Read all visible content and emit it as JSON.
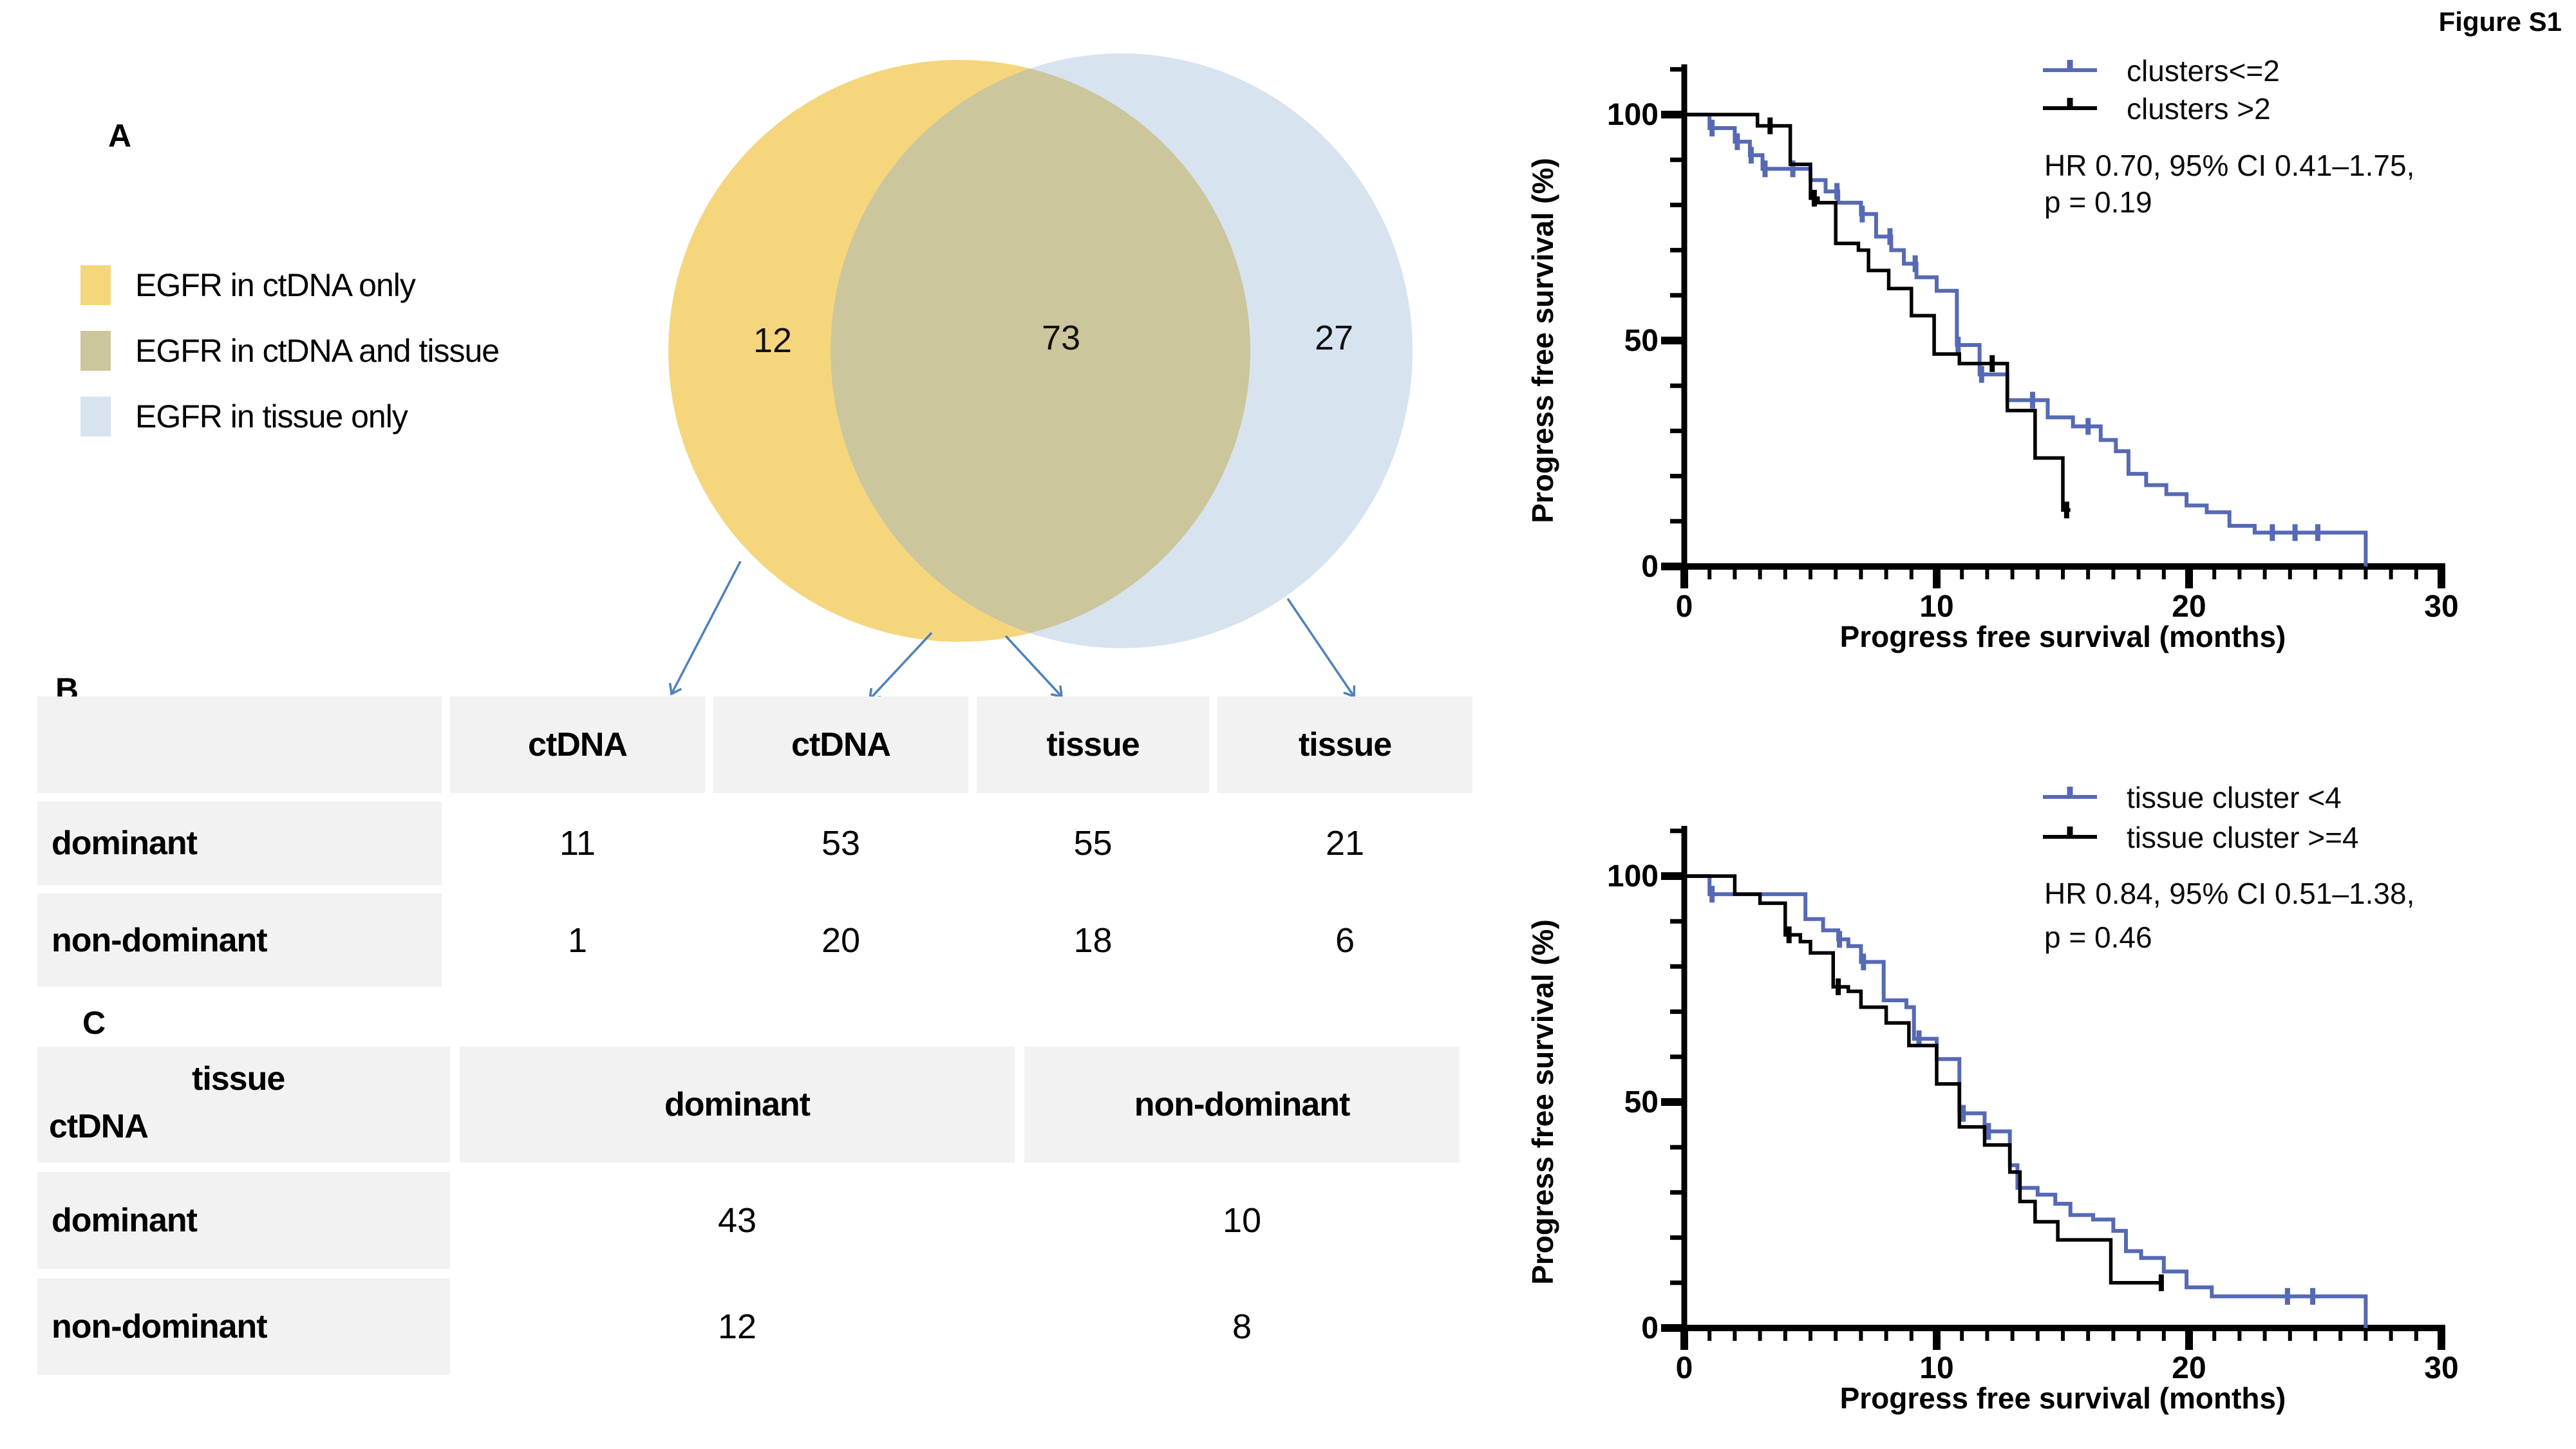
{
  "figure_label": "Figure S1",
  "panels": {
    "a": {
      "label": "A",
      "legend": [
        {
          "label": "EGFR in ctDNA only",
          "color": "#F6D67D"
        },
        {
          "label": "EGFR in ctDNA and tissue",
          "color": "#CBC69C"
        },
        {
          "label": "EGFR in tissue only",
          "color": "#D8E3F0"
        }
      ],
      "venn": {
        "ctdna_only": "12",
        "overlap": "73",
        "tissue_only": "27"
      }
    },
    "b": {
      "label": "B",
      "table": {
        "headers": [
          "",
          "ctDNA",
          "ctDNA",
          "tissue",
          "tissue"
        ],
        "rows": [
          {
            "label": "dominant",
            "values": [
              "11",
              "53",
              "55",
              "21"
            ]
          },
          {
            "label": "non-dominant",
            "values": [
              "1",
              "20",
              "18",
              "6"
            ]
          }
        ]
      }
    },
    "c": {
      "label": "C",
      "table": {
        "corner_top": "tissue",
        "corner_bottom": "ctDNA",
        "headers": [
          "dominant",
          "non-dominant"
        ],
        "rows": [
          {
            "label": "dominant",
            "values": [
              "43",
              "10"
            ]
          },
          {
            "label": "non-dominant",
            "values": [
              "12",
              "8"
            ]
          }
        ]
      }
    }
  },
  "chart_data": [
    {
      "type": "line",
      "subtype": "kaplan_meier_step",
      "title": "",
      "xlabel": "Progress free survival (months)",
      "ylabel": "Progress free survival (%)",
      "xlim": [
        0,
        30
      ],
      "ylim": [
        0,
        100
      ],
      "x_major_ticks": [
        0,
        10,
        20,
        30
      ],
      "y_major_ticks": [
        0,
        50,
        100
      ],
      "x_minor_step": 1,
      "y_minor_step": 10,
      "legend_position": "top-right",
      "stats": [
        "HR 0.70, 95% CI 0.41–1.75,",
        "p = 0.19"
      ],
      "series": [
        {
          "name": "clusters<=2",
          "color": "#5669B4",
          "steps": [
            [
              0,
              100
            ],
            [
              1,
              97
            ],
            [
              2,
              94
            ],
            [
              2.6,
              91
            ],
            [
              3.1,
              88
            ],
            [
              5,
              85.5
            ],
            [
              5.6,
              83
            ],
            [
              6.1,
              80.5
            ],
            [
              7,
              78
            ],
            [
              7.6,
              73
            ],
            [
              8.2,
              70
            ],
            [
              8.7,
              67
            ],
            [
              9.2,
              64
            ],
            [
              10,
              61
            ],
            [
              10.8,
              49
            ],
            [
              11.7,
              42.5
            ],
            [
              12.8,
              36.8
            ],
            [
              14.4,
              33
            ],
            [
              15.4,
              31
            ],
            [
              16.5,
              28
            ],
            [
              17.1,
              25.5
            ],
            [
              17.6,
              20.5
            ],
            [
              18.3,
              18
            ],
            [
              19.1,
              16
            ],
            [
              19.9,
              13.5
            ],
            [
              20.7,
              12
            ],
            [
              21.6,
              9
            ],
            [
              22.6,
              7.5
            ],
            [
              27,
              0
            ]
          ],
          "censors": [
            1.1,
            2.1,
            2.65,
            3.2,
            4.3,
            6.05,
            7.05,
            8.15,
            9.15,
            10.85,
            11.78,
            13.8,
            16,
            23.3,
            24.2,
            25.1
          ]
        },
        {
          "name": "clusters >2",
          "color": "#000000",
          "steps": [
            [
              0,
              100
            ],
            [
              2.9,
              97.5
            ],
            [
              4.2,
              89
            ],
            [
              5,
              81.5
            ],
            [
              5.3,
              80.5
            ],
            [
              6,
              71.5
            ],
            [
              6.9,
              70
            ],
            [
              7.3,
              65.5
            ],
            [
              8.1,
              61.5
            ],
            [
              9,
              55.5
            ],
            [
              9.9,
              47
            ],
            [
              10.9,
              44.9
            ],
            [
              12.8,
              34.5
            ],
            [
              13.9,
              24
            ],
            [
              15,
              12.5
            ],
            [
              15.3,
              12.5
            ]
          ],
          "censors": [
            3.4,
            5.15,
            12.2,
            15.15
          ]
        }
      ]
    },
    {
      "type": "line",
      "subtype": "kaplan_meier_step",
      "title": "",
      "xlabel": "Progress free survival (months)",
      "ylabel": "Progress free survival (%)",
      "xlim": [
        0,
        30
      ],
      "ylim": [
        0,
        100
      ],
      "x_major_ticks": [
        0,
        10,
        20,
        30
      ],
      "y_major_ticks": [
        0,
        50,
        100
      ],
      "x_minor_step": 1,
      "y_minor_step": 10,
      "legend_position": "top-right",
      "stats": [
        "HR 0.84, 95% CI 0.51–1.38,",
        "p = 0.46"
      ],
      "series": [
        {
          "name": "tissue cluster <4",
          "color": "#5669B4",
          "steps": [
            [
              0,
              100
            ],
            [
              1,
              96
            ],
            [
              4.8,
              90.5
            ],
            [
              5.5,
              88
            ],
            [
              6.1,
              86
            ],
            [
              6.5,
              84.5
            ],
            [
              7,
              81
            ],
            [
              7.9,
              72.5
            ],
            [
              8.8,
              71
            ],
            [
              9.1,
              64
            ],
            [
              10,
              59.5
            ],
            [
              10.9,
              47.5
            ],
            [
              11.9,
              43.5
            ],
            [
              12.9,
              36
            ],
            [
              13.2,
              31
            ],
            [
              14,
              29.5
            ],
            [
              14.7,
              27.5
            ],
            [
              15.3,
              25
            ],
            [
              16.2,
              24
            ],
            [
              17,
              21.5
            ],
            [
              17.5,
              17
            ],
            [
              18.1,
              15.5
            ],
            [
              19,
              12.5
            ],
            [
              19.9,
              9
            ],
            [
              20.9,
              7
            ],
            [
              27,
              0
            ]
          ],
          "censors": [
            1.1,
            6.15,
            7.1,
            9.3,
            11.05,
            12.05,
            23.9,
            24.9
          ]
        },
        {
          "name": "tissue cluster >=4",
          "color": "#000000",
          "steps": [
            [
              0,
              100
            ],
            [
              2,
              96
            ],
            [
              3,
              94
            ],
            [
              4,
              87
            ],
            [
              4.6,
              85.5
            ],
            [
              5,
              83
            ],
            [
              5.9,
              75.5
            ],
            [
              6.5,
              74.5
            ],
            [
              7,
              71
            ],
            [
              8,
              67.5
            ],
            [
              8.9,
              62.5
            ],
            [
              10,
              54
            ],
            [
              10.9,
              44.5
            ],
            [
              11.9,
              40.5
            ],
            [
              12.9,
              34.5
            ],
            [
              13.3,
              28
            ],
            [
              13.9,
              23.5
            ],
            [
              14.8,
              19.5
            ],
            [
              16.9,
              10
            ],
            [
              19,
              10
            ]
          ],
          "censors": [
            4.15,
            6.1,
            18.9
          ]
        }
      ]
    }
  ]
}
